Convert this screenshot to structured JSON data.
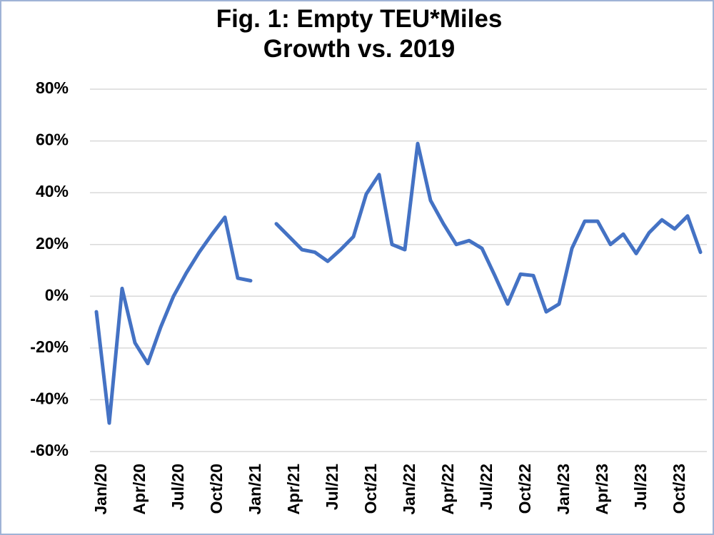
{
  "chart_data": {
    "type": "line",
    "title": [
      "Fig. 1: Empty TEU*Miles",
      "Growth vs. 2019"
    ],
    "categories": [
      "Jan/20",
      null,
      null,
      "Apr/20",
      null,
      null,
      "Jul/20",
      null,
      null,
      "Oct/20",
      null,
      null,
      "Jan/21",
      null,
      null,
      "Apr/21",
      null,
      null,
      "Jul/21",
      null,
      null,
      "Oct/21",
      null,
      null,
      "Jan/22",
      null,
      null,
      "Apr/22",
      null,
      null,
      "Jul/22",
      null,
      null,
      "Oct/22",
      null,
      null,
      "Jan/23",
      null,
      null,
      "Apr/23",
      null,
      null,
      "Jul/23",
      null,
      null,
      "Oct/23",
      null,
      null
    ],
    "series": [
      {
        "color": "#4472c4",
        "values": [
          -6,
          -49,
          3,
          -18,
          -26,
          -12,
          0,
          9,
          17,
          24,
          30.5,
          7,
          6,
          null,
          28,
          23,
          18,
          17,
          13.5,
          18,
          23,
          39.5,
          47,
          20,
          18,
          59,
          37,
          28,
          20,
          21.5,
          18.5,
          8,
          -3,
          8.5,
          8,
          -6,
          -3,
          18.5,
          29,
          29,
          20,
          24,
          16.5,
          24.5,
          29.5,
          26,
          31,
          17
        ]
      }
    ],
    "ylim": [
      -60,
      80
    ],
    "yticks": [
      {
        "value": -60,
        "label": "-60%"
      },
      {
        "value": -40,
        "label": "-40%"
      },
      {
        "value": -20,
        "label": "-20%"
      },
      {
        "value": 0,
        "label": "0%"
      },
      {
        "value": 20,
        "label": "20%"
      },
      {
        "value": 40,
        "label": "40%"
      },
      {
        "value": 60,
        "label": "60%"
      },
      {
        "value": 80,
        "label": "80%"
      }
    ],
    "grid": true
  }
}
